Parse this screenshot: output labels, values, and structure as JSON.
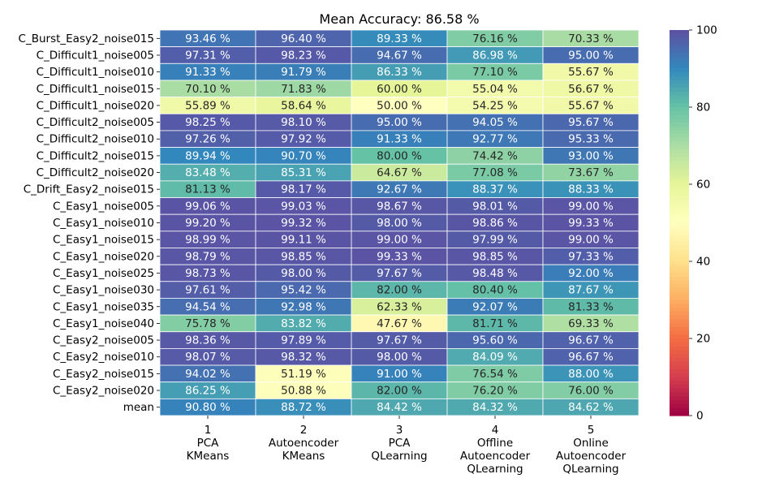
{
  "chart_data": {
    "type": "heatmap",
    "title": "Mean Accuracy: 86.58 %",
    "value_suffix": " %",
    "rows": [
      "C_Burst_Easy2_noise015",
      "C_Difficult1_noise005",
      "C_Difficult1_noise010",
      "C_Difficult1_noise015",
      "C_Difficult1_noise020",
      "C_Difficult2_noise005",
      "C_Difficult2_noise010",
      "C_Difficult2_noise015",
      "C_Difficult2_noise020",
      "C_Drift_Easy2_noise015",
      "C_Easy1_noise005",
      "C_Easy1_noise010",
      "C_Easy1_noise015",
      "C_Easy1_noise020",
      "C_Easy1_noise025",
      "C_Easy1_noise030",
      "C_Easy1_noise035",
      "C_Easy1_noise040",
      "C_Easy2_noise005",
      "C_Easy2_noise010",
      "C_Easy2_noise015",
      "C_Easy2_noise020",
      "mean"
    ],
    "columns": [
      {
        "num": "1",
        "lines": [
          "PCA",
          "KMeans"
        ]
      },
      {
        "num": "2",
        "lines": [
          "Autoencoder",
          "KMeans"
        ]
      },
      {
        "num": "3",
        "lines": [
          "PCA",
          "QLearning"
        ]
      },
      {
        "num": "4",
        "lines": [
          "Offline",
          "Autoencoder",
          "QLearning"
        ]
      },
      {
        "num": "5",
        "lines": [
          "Online",
          "Autoencoder",
          "QLearning"
        ]
      }
    ],
    "values": [
      [
        "93.46",
        "96.40",
        "89.33",
        "76.16",
        "70.33"
      ],
      [
        "97.31",
        "98.23",
        "94.67",
        "86.98",
        "95.00"
      ],
      [
        "91.33",
        "91.79",
        "86.33",
        "77.10",
        "55.67"
      ],
      [
        "70.10",
        "71.83",
        "60.00",
        "55.04",
        "56.67"
      ],
      [
        "55.89",
        "58.64",
        "50.00",
        "54.25",
        "55.67"
      ],
      [
        "98.25",
        "98.10",
        "95.00",
        "94.05",
        "95.67"
      ],
      [
        "97.26",
        "97.92",
        "91.33",
        "92.77",
        "95.33"
      ],
      [
        "89.94",
        "90.70",
        "80.00",
        "74.42",
        "93.00"
      ],
      [
        "83.48",
        "85.31",
        "64.67",
        "77.08",
        "73.67"
      ],
      [
        "81.13",
        "98.17",
        "92.67",
        "88.37",
        "88.33"
      ],
      [
        "99.06",
        "99.03",
        "98.67",
        "98.01",
        "99.00"
      ],
      [
        "99.20",
        "99.32",
        "98.00",
        "98.86",
        "99.33"
      ],
      [
        "98.99",
        "99.11",
        "99.00",
        "97.99",
        "99.00"
      ],
      [
        "98.79",
        "98.85",
        "99.33",
        "98.85",
        "97.33"
      ],
      [
        "98.73",
        "98.00",
        "97.67",
        "98.48",
        "92.00"
      ],
      [
        "97.61",
        "95.42",
        "82.00",
        "80.40",
        "87.67"
      ],
      [
        "94.54",
        "92.98",
        "62.33",
        "92.07",
        "81.33"
      ],
      [
        "75.78",
        "83.82",
        "47.67",
        "81.71",
        "69.33"
      ],
      [
        "98.36",
        "97.89",
        "97.67",
        "95.60",
        "96.67"
      ],
      [
        "98.07",
        "98.32",
        "98.00",
        "84.09",
        "96.67"
      ],
      [
        "94.02",
        "51.19",
        "91.00",
        "76.54",
        "88.00"
      ],
      [
        "86.25",
        "50.88",
        "82.00",
        "76.20",
        "76.00"
      ],
      [
        "90.80",
        "88.72",
        "84.42",
        "84.32",
        "84.62"
      ]
    ],
    "colormap": "Spectral",
    "vmin": 0,
    "vmax": 100,
    "colorbar_ticks": [
      "0",
      "20",
      "40",
      "60",
      "80",
      "100"
    ],
    "colorbar_placement": "right"
  }
}
